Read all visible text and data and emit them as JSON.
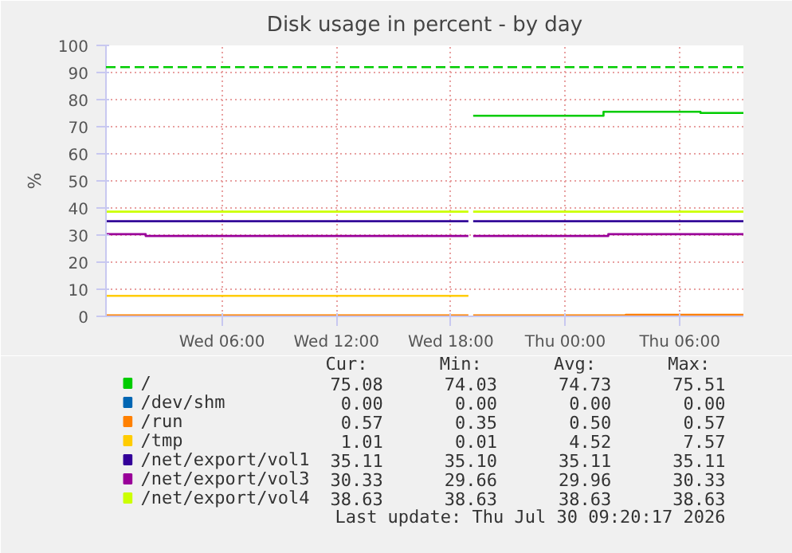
{
  "chart_data": {
    "type": "step",
    "title": "Disk usage in percent - by day",
    "ylabel": "%",
    "xlim": [
      "2026-07-28T23:55",
      "2026-07-30T09:20"
    ],
    "xticks": [
      {
        "value": "2026-07-29T06:00",
        "label": "Wed 06:00"
      },
      {
        "value": "2026-07-29T12:00",
        "label": "Wed 12:00"
      },
      {
        "value": "2026-07-29T18:00",
        "label": "Wed 18:00"
      },
      {
        "value": "2026-07-30T00:00",
        "label": "Thu 00:00"
      },
      {
        "value": "2026-07-30T06:00",
        "label": "Thu 06:00"
      }
    ],
    "ylim": [
      0,
      100
    ],
    "yticks": [
      0,
      10,
      20,
      30,
      40,
      50,
      60,
      70,
      80,
      90,
      100
    ],
    "grid": true,
    "legend": "bottom",
    "series": [
      {
        "name": "/",
        "color": "#00cc00",
        "x": [
          "2026-07-29T19:10",
          "2026-07-30T02:00",
          "2026-07-30T07:05",
          "2026-07-30T09:20"
        ],
        "values": [
          74.03,
          75.51,
          75.08,
          75.08
        ]
      },
      {
        "name": "/dev/shm",
        "color": "#0066b3"
      },
      {
        "name": "/run",
        "color": "#ff8000",
        "x": [
          "2026-07-28T23:55",
          "2026-07-29T18:55",
          "2026-07-29T19:10",
          "2026-07-30T03:10",
          "2026-07-30T09:20"
        ],
        "values": [
          0.35,
          null,
          0.35,
          0.57,
          0.57
        ]
      },
      {
        "name": "/tmp",
        "color": "#ffcc00",
        "x": [
          "2026-07-28T23:55",
          "2026-07-29T18:55"
        ],
        "values": [
          7.57,
          7.57
        ]
      },
      {
        "name": "/net/export/vol1",
        "color": "#330099",
        "x": [
          "2026-07-28T23:55",
          "2026-07-29T18:55",
          "2026-07-29T19:10",
          "2026-07-30T09:20"
        ],
        "values": [
          35.11,
          null,
          35.11,
          35.11
        ]
      },
      {
        "name": "/net/export/vol3",
        "color": "#990099",
        "x": [
          "2026-07-28T23:55",
          "2026-07-29T02:00",
          "2026-07-29T18:55",
          "2026-07-29T19:10",
          "2026-07-30T02:15",
          "2026-07-30T09:20"
        ],
        "values": [
          30.33,
          29.66,
          null,
          29.66,
          30.33,
          30.33
        ]
      },
      {
        "name": "/net/export/vol4",
        "color": "#ccff00",
        "x": [
          "2026-07-28T23:55",
          "2026-07-29T18:55",
          "2026-07-29T19:10",
          "2026-07-30T09:20"
        ],
        "values": [
          38.63,
          null,
          38.63,
          38.63
        ]
      }
    ],
    "ref_lines": [
      {
        "axis": "y",
        "value": 92,
        "color": "#00cc00",
        "line_style": "dashed"
      }
    ],
    "annotations": [
      "Cur:",
      "Min:",
      "Avg:",
      "Max:",
      "75.08",
      "74.03",
      "74.73",
      "75.51",
      "0.00",
      "0.00",
      "0.00",
      "0.00",
      "0.57",
      "0.35",
      "0.50",
      "0.57",
      "1.01",
      "0.01",
      "4.52",
      "7.57",
      "35.11",
      "35.10",
      "35.11",
      "35.11",
      "30.33",
      "29.66",
      "29.96",
      "30.33",
      "38.63",
      "38.63",
      "38.63",
      "38.63",
      "Last update: Thu Jul 30 09:20:17 2026"
    ]
  }
}
